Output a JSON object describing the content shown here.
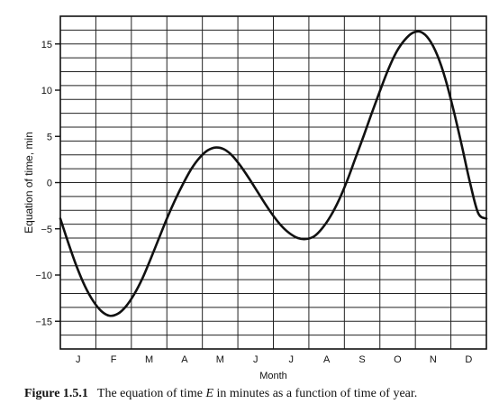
{
  "chart_data": {
    "type": "line",
    "xlabel": "Month",
    "ylabel": "Equation of time, min",
    "month_labels": [
      "J",
      "F",
      "M",
      "A",
      "M",
      "J",
      "J",
      "A",
      "S",
      "O",
      "N",
      "D"
    ],
    "xlim": [
      1,
      365
    ],
    "ylim": [
      -18,
      18
    ],
    "y_ticks": [
      -15,
      -10,
      -5,
      0,
      5,
      10,
      15
    ],
    "y_tick_labels": [
      "−15",
      "−10",
      "−5",
      "0",
      "5",
      "10",
      "15"
    ],
    "grid": true,
    "series": [
      {
        "x": [
          1,
          8,
          15,
          22,
          29,
          36,
          43,
          50,
          57,
          64,
          71,
          78,
          85,
          92,
          99,
          106,
          113,
          120,
          127,
          134,
          141,
          148,
          155,
          162,
          169,
          176,
          183,
          190,
          197,
          204,
          211,
          218,
          225,
          232,
          239,
          246,
          253,
          260,
          267,
          274,
          281,
          288,
          295,
          302,
          309,
          316,
          323,
          330,
          337,
          344,
          351,
          358,
          365
        ],
        "y": [
          -3.9,
          -6.6,
          -9.1,
          -11.2,
          -12.8,
          -13.9,
          -14.4,
          -14.2,
          -13.4,
          -12.1,
          -10.4,
          -8.3,
          -6.1,
          -3.9,
          -1.9,
          -0.1,
          1.5,
          2.7,
          3.5,
          3.8,
          3.6,
          2.9,
          1.8,
          0.5,
          -0.9,
          -2.3,
          -3.6,
          -4.7,
          -5.5,
          -6.0,
          -6.1,
          -5.8,
          -4.9,
          -3.6,
          -1.9,
          0.2,
          2.6,
          5.0,
          7.5,
          9.9,
          12.2,
          14.1,
          15.4,
          16.2,
          16.3,
          15.5,
          13.8,
          11.2,
          7.8,
          4.0,
          0.0,
          -3.3,
          -3.9
        ]
      }
    ]
  },
  "caption": {
    "number": "Figure 1.5.1",
    "text_before": "The equation of time ",
    "symbol": "E",
    "text_after": " in minutes as a function of time of year."
  }
}
